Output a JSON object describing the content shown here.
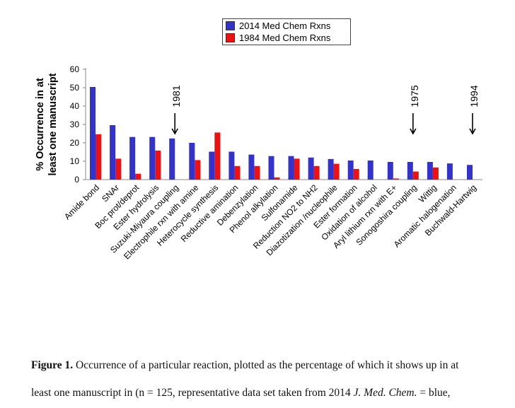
{
  "chart_data": {
    "type": "bar",
    "ylabel_line1": "% Occurrence in at",
    "ylabel_line2": "least one manuscript",
    "ylim": [
      0,
      60
    ],
    "yticks": [
      0,
      10,
      20,
      30,
      40,
      50,
      60
    ],
    "legend_position": "top-center",
    "categories": [
      "Amide bond",
      "SNAr",
      "Boc prot/deprot",
      "Ester hydrolysis",
      "Suzuki-Miyaura coupling",
      "Electrophile rxn with amine",
      "Heterocycle synthesis",
      "Reductive amination",
      "Debenzylation",
      "Phenol alkylation",
      "Sulfonamide",
      "Reduction NO2 to NH2",
      "Diazotization /nucleophile",
      "Ester formation",
      "Oxidation of alcohol",
      "Aryl lithium rxn with E+",
      "Sonogoshira coupling",
      "Wittig",
      "Aromatic halogenation",
      "Buchwald-Hartwig"
    ],
    "series": [
      {
        "name": "2014 Med Chem Rxns",
        "color": "#3333cc",
        "values": [
          50.4,
          29.6,
          23.2,
          23.2,
          22.4,
          20,
          15.2,
          15.2,
          13.6,
          12.8,
          12.8,
          12,
          11.2,
          10.4,
          10.4,
          9.6,
          9.6,
          9.6,
          8.8,
          8
        ]
      },
      {
        "name": "1984 Med Chem Rxns",
        "color": "#ee1111",
        "values": [
          24.7,
          11.4,
          3.2,
          15.8,
          0,
          10.6,
          25.6,
          7.4,
          7.4,
          1.2,
          11.4,
          7.4,
          8.6,
          5.8,
          0,
          0.6,
          4.4,
          6.6,
          0,
          0
        ]
      }
    ],
    "annotations": [
      {
        "text": "1981",
        "category_index": 4
      },
      {
        "text": "1975",
        "category_index": 16
      },
      {
        "text": "1994",
        "category_index": 19
      }
    ]
  },
  "caption": {
    "label": "Figure 1.",
    "line1": "Occurrence of a particular reaction, plotted as the percentage of which it shows up in at",
    "line2_a": "least one manuscript in (n = 125, representative data set taken from 2014 ",
    "line2_ital": "J. Med. Chem.",
    "line2_b": " = blue,"
  }
}
